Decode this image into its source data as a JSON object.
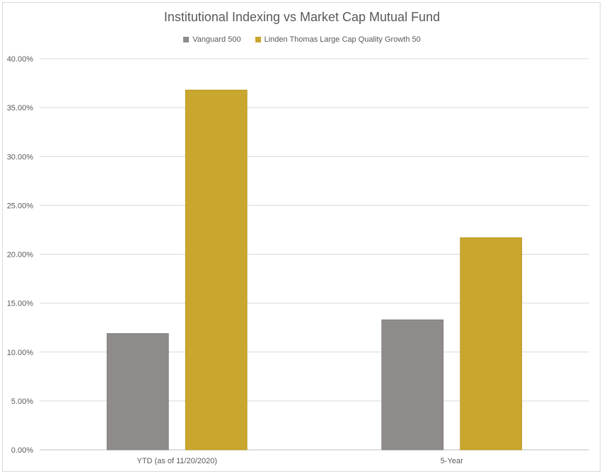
{
  "chart_data": {
    "type": "bar",
    "title": "Institutional Indexing vs Market Cap Mutual Fund",
    "categories": [
      "YTD (as of 11/20/2020)",
      "5-Year"
    ],
    "series": [
      {
        "name": "Vanguard 500",
        "values": [
          11.9,
          13.3
        ],
        "color": "#8f8b8a"
      },
      {
        "name": "Linden Thomas Large Cap Quality Growth 50",
        "values": [
          36.8,
          21.7
        ],
        "color": "#c9a62d"
      }
    ],
    "ylim": [
      0,
      40
    ],
    "yticks": [
      0,
      5,
      10,
      15,
      20,
      25,
      30,
      35,
      40
    ],
    "ytick_labels": [
      "0.00%",
      "5.00%",
      "10.00%",
      "15.00%",
      "20.00%",
      "25.00%",
      "30.00%",
      "35.00%",
      "40.00%"
    ],
    "grid": true,
    "legend_position": "top"
  }
}
